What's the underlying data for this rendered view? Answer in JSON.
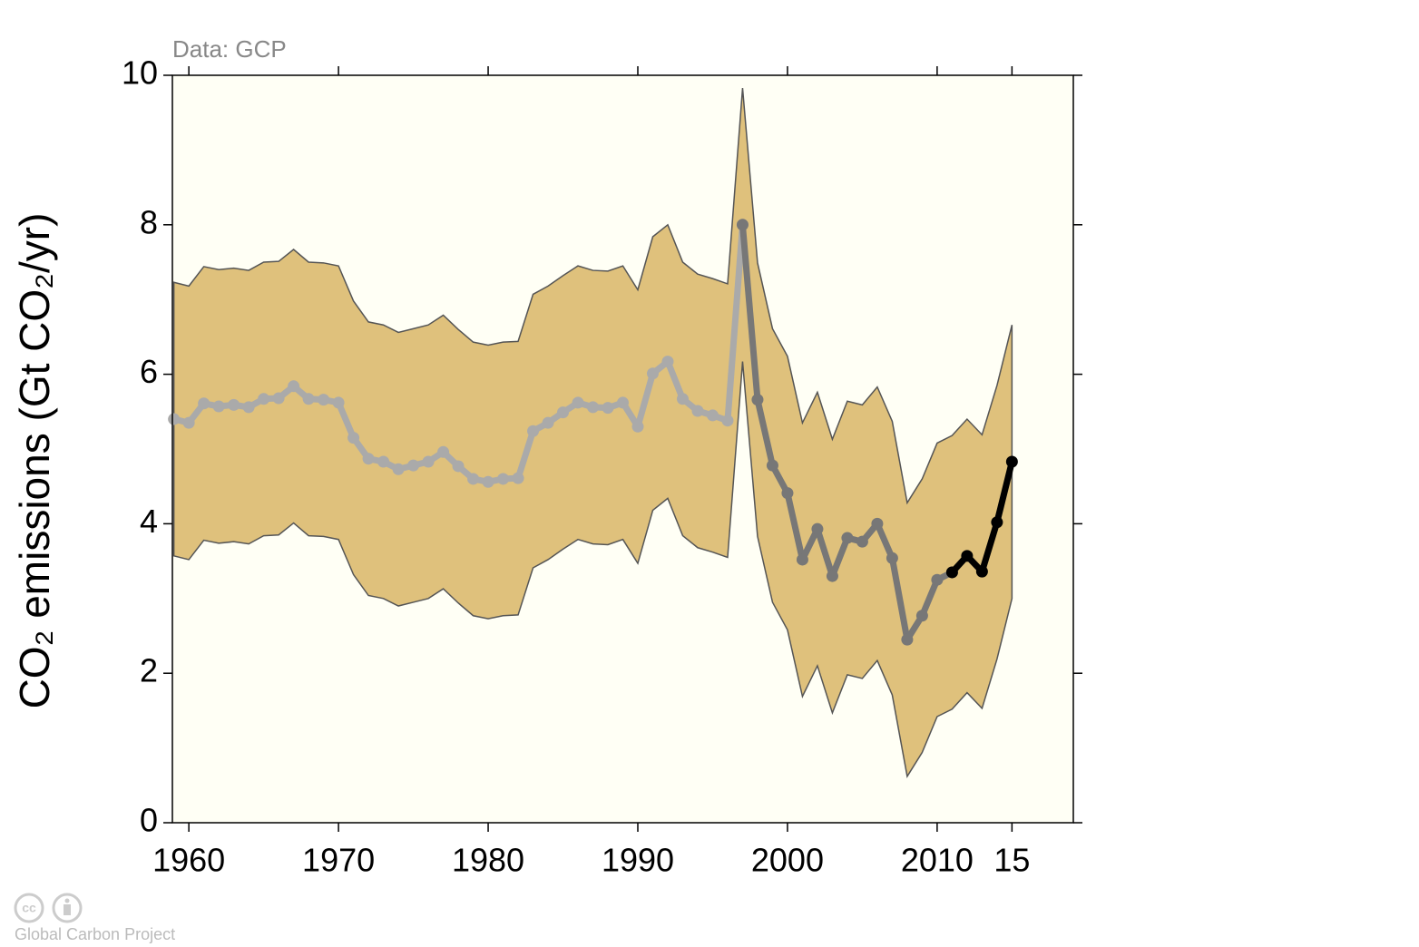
{
  "chart_data": {
    "type": "line",
    "note": "Data: GCP",
    "ylabel": "CO₂ emissions (Gt CO₂/yr)",
    "footer": "Global Carbon Project",
    "x": [
      1959,
      1960,
      1961,
      1962,
      1963,
      1964,
      1965,
      1966,
      1967,
      1968,
      1969,
      1970,
      1971,
      1972,
      1973,
      1974,
      1975,
      1976,
      1977,
      1978,
      1979,
      1980,
      1981,
      1982,
      1983,
      1984,
      1985,
      1986,
      1987,
      1988,
      1989,
      1990,
      1991,
      1992,
      1993,
      1994,
      1995,
      1996,
      1997,
      1998,
      1999,
      2000,
      2001,
      2002,
      2003,
      2004,
      2005,
      2006,
      2007,
      2008,
      2009,
      2010,
      2011,
      2012,
      2013,
      2014,
      2015
    ],
    "band": {
      "color": "#dfc17c",
      "upper": [
        7.23,
        7.18,
        7.44,
        7.4,
        7.42,
        7.39,
        7.5,
        7.51,
        7.67,
        7.5,
        7.49,
        7.45,
        6.98,
        6.7,
        6.66,
        6.56,
        6.61,
        6.66,
        6.79,
        6.6,
        6.43,
        6.39,
        6.43,
        6.44,
        7.07,
        7.18,
        7.32,
        7.45,
        7.39,
        7.38,
        7.45,
        7.13,
        7.84,
        8.0,
        7.5,
        7.34,
        7.28,
        7.21,
        9.83,
        7.49,
        6.61,
        6.24,
        5.35,
        5.76,
        5.13,
        5.64,
        5.59,
        5.83,
        5.37,
        4.28,
        4.6,
        5.08,
        5.18,
        5.4,
        5.19,
        5.85,
        6.66
      ],
      "lower": [
        3.57,
        3.52,
        3.78,
        3.74,
        3.76,
        3.73,
        3.84,
        3.85,
        4.01,
        3.84,
        3.83,
        3.79,
        3.32,
        3.04,
        3.0,
        2.9,
        2.95,
        3.0,
        3.13,
        2.94,
        2.77,
        2.73,
        2.77,
        2.78,
        3.41,
        3.52,
        3.66,
        3.79,
        3.73,
        3.72,
        3.79,
        3.47,
        4.18,
        4.34,
        3.84,
        3.68,
        3.62,
        3.55,
        6.17,
        3.83,
        2.95,
        2.58,
        1.69,
        2.1,
        1.47,
        1.98,
        1.93,
        2.17,
        1.71,
        0.62,
        0.94,
        1.42,
        1.52,
        1.74,
        1.53,
        2.19,
        3.0
      ]
    },
    "series": [
      {
        "color": "#aaaaaa",
        "values": [
          5.4,
          5.35,
          5.61,
          5.57,
          5.59,
          5.56,
          5.67,
          5.68,
          5.84,
          5.67,
          5.66,
          5.62,
          5.15,
          4.87,
          4.83,
          4.73,
          4.78,
          4.83,
          4.96,
          4.77,
          4.6,
          4.56,
          4.6,
          4.61,
          5.24,
          5.35,
          5.49,
          5.62,
          5.56,
          5.55,
          5.62,
          5.3,
          6.01,
          6.17,
          5.67,
          5.51,
          5.45,
          5.38,
          8.0,
          null,
          null,
          null,
          null,
          null,
          null,
          null,
          null,
          null,
          null,
          null,
          null,
          null,
          null,
          null,
          null,
          null,
          null
        ]
      },
      {
        "color": "#777777",
        "values": [
          null,
          null,
          null,
          null,
          null,
          null,
          null,
          null,
          null,
          null,
          null,
          null,
          null,
          null,
          null,
          null,
          null,
          null,
          null,
          null,
          null,
          null,
          null,
          null,
          null,
          null,
          null,
          null,
          null,
          null,
          null,
          null,
          null,
          null,
          null,
          null,
          null,
          null,
          8.0,
          5.66,
          4.78,
          4.41,
          3.52,
          3.93,
          3.3,
          3.81,
          3.76,
          4.0,
          3.54,
          2.45,
          2.77,
          3.25,
          3.35,
          null,
          null,
          null,
          null
        ]
      },
      {
        "color": "#000000",
        "values": [
          null,
          null,
          null,
          null,
          null,
          null,
          null,
          null,
          null,
          null,
          null,
          null,
          null,
          null,
          null,
          null,
          null,
          null,
          null,
          null,
          null,
          null,
          null,
          null,
          null,
          null,
          null,
          null,
          null,
          null,
          null,
          null,
          null,
          null,
          null,
          null,
          null,
          null,
          null,
          null,
          null,
          null,
          null,
          null,
          null,
          null,
          null,
          null,
          null,
          null,
          null,
          null,
          3.35,
          3.57,
          3.36,
          4.02,
          4.83
        ]
      }
    ],
    "xlim": [
      1958.9,
      2019.1
    ],
    "ylim": [
      0,
      10
    ],
    "xticks": [
      1960,
      1970,
      1980,
      1990,
      2000,
      2010,
      {
        "value": 2015,
        "label": "15"
      }
    ],
    "yticks": [
      0,
      2,
      4,
      6,
      8,
      10
    ],
    "background": "#fffff5"
  }
}
